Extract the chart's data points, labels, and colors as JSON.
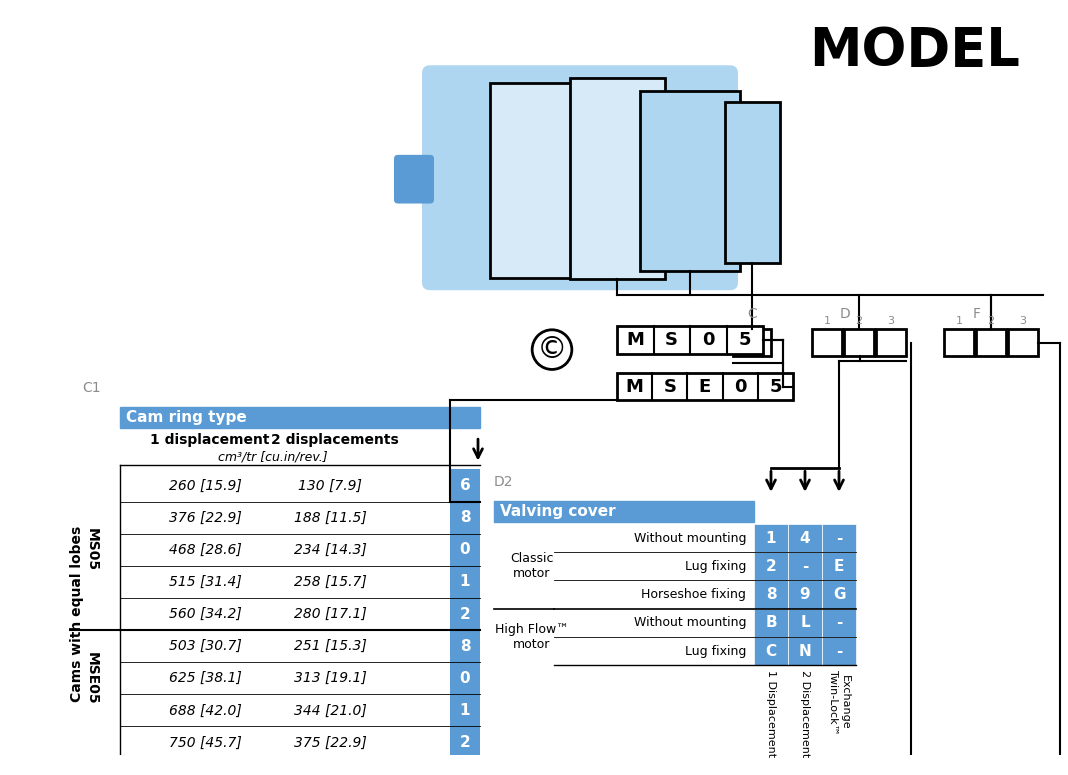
{
  "title": "MODEL",
  "title_fontsize": 38,
  "bg_color": "#ffffff",
  "header_color": "#5b9bd5",
  "header_text_color": "#ffffff",
  "gray_label_color": "#8c8c8c",
  "blue_cell_color": "#5b9bd5",
  "blue_cell_text_color": "#ffffff",
  "c1_label": "C1",
  "c1_header": "Cam ring type",
  "c1_col1": "1 displacement",
  "c1_col2": "2 displacements",
  "c1_unit": "cm³/tr [cu.in/rev.]",
  "c1_rows": [
    [
      "260 [15.9]",
      "130 [7.9]",
      "6",
      "MS05"
    ],
    [
      "376 [22.9]",
      "188 [11.5]",
      "8",
      "MS05"
    ],
    [
      "468 [28.6]",
      "234 [14.3]",
      "0",
      "MS05"
    ],
    [
      "515 [31.4]",
      "258 [15.7]",
      "1",
      "MS05"
    ],
    [
      "560 [34.2]",
      "280 [17.1]",
      "2",
      "MS05"
    ],
    [
      "503 [30.7]",
      "251 [15.3]",
      "8",
      "MSE05"
    ],
    [
      "625 [38.1]",
      "313 [19.1]",
      "0",
      "MSE05"
    ],
    [
      "688 [42.0]",
      "344 [21.0]",
      "1",
      "MSE05"
    ],
    [
      "750 [45.7]",
      "375 [22.9]",
      "2",
      "MSE05"
    ]
  ],
  "cams_label": "Cams with equal lobes",
  "d2_label": "D2",
  "d2_header": "Valving cover",
  "d2_rows": [
    [
      "Classic\nmotor",
      "Without mounting",
      "1",
      "4",
      "-"
    ],
    [
      "Classic\nmotor",
      "Lug fixing",
      "2",
      "-",
      "E"
    ],
    [
      "Classic\nmotor",
      "Horseshoe fixing",
      "8",
      "9",
      "G"
    ],
    [
      "High Flow™\nmotor",
      "Without mounting",
      "B",
      "L",
      "-"
    ],
    [
      "High Flow™\nmotor",
      "Lug fixing",
      "C",
      "N",
      "-"
    ]
  ],
  "d2_col_labels": [
    "1 Displacement",
    "2 Displacement",
    "Exchange\nTwin-Lock™"
  ],
  "C_label": "C",
  "D_label": "D",
  "F_label": "F"
}
